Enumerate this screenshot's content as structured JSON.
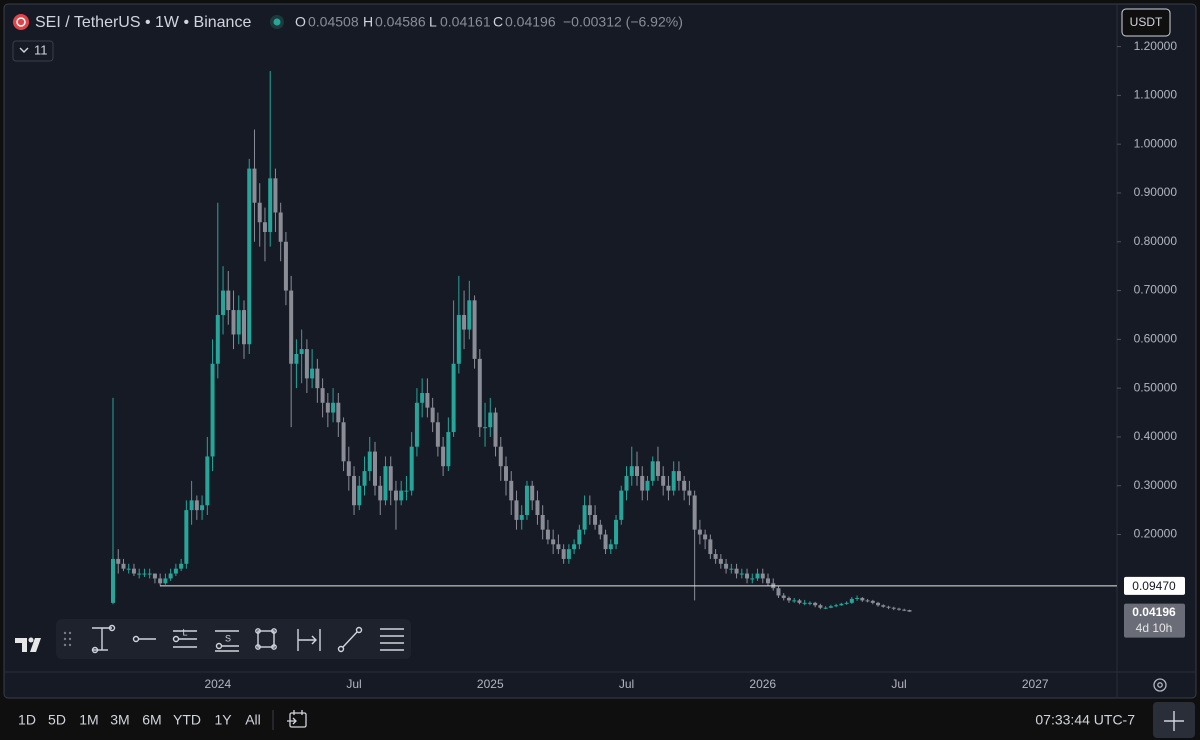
{
  "header": {
    "symbol": "SEI / TetherUS • 1W • Binance",
    "letters": [
      "O",
      "H",
      "L",
      "C"
    ],
    "change": "−0.00312 (−6.92%)",
    "indicator_count": "11",
    "currency": "USDT"
  },
  "drawing_tools": [
    "L",
    "S"
  ],
  "ranges": [
    "1D",
    "5D",
    "1M",
    "3M",
    "6M",
    "YTD",
    "1Y",
    "All"
  ],
  "clock": "07:33:44 UTC-7",
  "chart_data": {
    "type": "candlestick",
    "up_color": "#26a69a",
    "down_color": "#8a8d96",
    "ylim": [
      -0.133,
      1.275
    ],
    "yticks": [
      {
        "value": 0.2,
        "label": "0.20000"
      },
      {
        "value": 0.3,
        "label": "0.30000"
      },
      {
        "value": 0.4,
        "label": "0.40000"
      },
      {
        "value": 0.5,
        "label": "0.50000"
      },
      {
        "value": 0.6,
        "label": "0.60000"
      },
      {
        "value": 0.7,
        "label": "0.70000"
      },
      {
        "value": 0.8,
        "label": "0.80000"
      },
      {
        "value": 0.9,
        "label": "0.90000"
      },
      {
        "value": 1.0,
        "label": "1.00000"
      },
      {
        "value": 1.1,
        "label": "1.10000"
      },
      {
        "value": 1.2,
        "label": "1.20000"
      }
    ],
    "grid": false,
    "horizontal_line": {
      "value": 0.0947,
      "label": "0.09470"
    },
    "last_price": {
      "value": 0.04196,
      "label": "0.04196"
    },
    "countdown": "4d 10h",
    "categories": [
      null,
      null,
      null,
      null,
      null,
      null,
      null,
      null,
      null,
      null,
      null,
      null,
      null,
      null,
      null,
      null,
      null,
      null,
      null,
      null,
      "2024",
      null,
      null,
      null,
      null,
      null,
      null,
      null,
      null,
      null,
      null,
      null,
      null,
      null,
      null,
      null,
      null,
      null,
      null,
      null,
      null,
      null,
      null,
      null,
      null,
      null,
      "Jul",
      null,
      null,
      null,
      null,
      null,
      null,
      null,
      null,
      null,
      null,
      null,
      null,
      null,
      null,
      null,
      null,
      null,
      null,
      null,
      null,
      null,
      null,
      null,
      null,
      null,
      "2025",
      null,
      null,
      null,
      null,
      null,
      null,
      null,
      null,
      null,
      null,
      null,
      null,
      null,
      null,
      null,
      null,
      null,
      null,
      null,
      null,
      null,
      null,
      null,
      null,
      null,
      "Jul",
      null,
      null,
      null,
      null,
      null,
      null,
      null,
      null,
      null,
      null,
      null,
      null,
      null,
      null,
      null,
      null,
      null,
      null,
      null,
      null,
      null,
      null,
      null,
      null,
      null,
      "2026",
      null,
      null,
      null,
      null,
      null,
      null,
      null,
      null,
      null,
      null,
      null,
      null,
      null,
      null,
      null,
      null,
      null,
      null,
      null,
      null,
      null,
      null,
      null,
      null,
      null,
      "Jul",
      null,
      null,
      null,
      null,
      null,
      null,
      null,
      null,
      null,
      null,
      null,
      null,
      null,
      null,
      null,
      null,
      null,
      null,
      null,
      null,
      null,
      null,
      null,
      null,
      null,
      "2027"
    ],
    "open": [
      0.06,
      0.15,
      0.14,
      0.13,
      0.13,
      0.12,
      0.12,
      0.12,
      0.12,
      0.11,
      0.1,
      0.11,
      0.12,
      0.13,
      0.14,
      0.25,
      0.27,
      0.25,
      0.26,
      0.36,
      0.55,
      0.65,
      0.7,
      0.66,
      0.61,
      0.66,
      0.59,
      0.95,
      0.88,
      0.84,
      0.82,
      0.93,
      0.86,
      0.8,
      0.7,
      0.55,
      0.57,
      0.58,
      0.52,
      0.54,
      0.5,
      0.47,
      0.45,
      0.47,
      0.43,
      0.35,
      0.32,
      0.26,
      0.3,
      0.33,
      0.37,
      0.3,
      0.27,
      0.34,
      0.29,
      0.27,
      0.29,
      0.29,
      0.38,
      0.47,
      0.49,
      0.46,
      0.43,
      0.38,
      0.34,
      0.41,
      0.55,
      0.65,
      0.62,
      0.68,
      0.56,
      0.42,
      0.42,
      0.45,
      0.38,
      0.34,
      0.31,
      0.27,
      0.23,
      0.24,
      0.3,
      0.27,
      0.24,
      0.21,
      0.19,
      0.18,
      0.17,
      0.15,
      0.17,
      0.18,
      0.21,
      0.26,
      0.24,
      0.22,
      0.2,
      0.17,
      0.18,
      0.23,
      0.29,
      0.32,
      0.34,
      0.32,
      0.29,
      0.31,
      0.35,
      0.32,
      0.3,
      0.29,
      0.33,
      0.31,
      0.29,
      0.28,
      0.21,
      0.2,
      0.19,
      0.16,
      0.15,
      0.14,
      0.13,
      0.13,
      0.12,
      0.12,
      0.11,
      0.11,
      0.12,
      0.11,
      0.1,
      0.09,
      0.075,
      0.07,
      0.065,
      0.065,
      0.06,
      0.06,
      0.06,
      0.055,
      0.05,
      0.05,
      0.053,
      0.055,
      0.058,
      0.06,
      0.068,
      0.07,
      0.065,
      0.064,
      0.06,
      0.055,
      0.052,
      0.05,
      0.048,
      0.046,
      0.04508,
      null,
      null,
      null,
      null,
      null,
      null,
      null,
      null,
      null,
      null,
      null,
      null,
      null,
      null,
      null,
      null,
      null,
      null,
      null,
      null,
      null,
      null,
      null,
      null
    ],
    "high": [
      0.48,
      0.17,
      0.15,
      0.14,
      0.14,
      0.13,
      0.13,
      0.13,
      0.12,
      0.12,
      0.12,
      0.13,
      0.14,
      0.15,
      0.27,
      0.31,
      0.28,
      0.28,
      0.4,
      0.6,
      0.88,
      0.75,
      0.74,
      0.7,
      0.69,
      0.68,
      0.97,
      1.03,
      0.92,
      0.87,
      1.15,
      0.95,
      0.88,
      0.82,
      0.73,
      0.6,
      0.62,
      0.6,
      0.58,
      0.56,
      0.52,
      0.49,
      0.5,
      0.49,
      0.44,
      0.38,
      0.34,
      0.32,
      0.36,
      0.4,
      0.39,
      0.32,
      0.36,
      0.36,
      0.31,
      0.31,
      0.32,
      0.41,
      0.5,
      0.52,
      0.52,
      0.48,
      0.45,
      0.4,
      0.44,
      0.68,
      0.73,
      0.7,
      0.72,
      0.69,
      0.58,
      0.47,
      0.48,
      0.46,
      0.4,
      0.36,
      0.33,
      0.29,
      0.26,
      0.31,
      0.31,
      0.29,
      0.26,
      0.23,
      0.21,
      0.2,
      0.18,
      0.18,
      0.19,
      0.22,
      0.28,
      0.28,
      0.26,
      0.23,
      0.21,
      0.19,
      0.24,
      0.3,
      0.34,
      0.38,
      0.37,
      0.34,
      0.32,
      0.36,
      0.38,
      0.34,
      0.32,
      0.35,
      0.35,
      0.32,
      0.31,
      0.29,
      0.23,
      0.21,
      0.2,
      0.17,
      0.16,
      0.15,
      0.14,
      0.14,
      0.13,
      0.13,
      0.12,
      0.13,
      0.13,
      0.12,
      0.11,
      0.095,
      0.08,
      0.073,
      0.07,
      0.068,
      0.066,
      0.063,
      0.062,
      0.058,
      0.053,
      0.056,
      0.058,
      0.06,
      0.063,
      0.072,
      0.075,
      0.072,
      0.068,
      0.066,
      0.062,
      0.057,
      0.054,
      0.052,
      0.05,
      0.048,
      0.04586,
      null,
      null,
      null,
      null,
      null,
      null,
      null,
      null,
      null,
      null,
      null,
      null,
      null,
      null,
      null,
      null,
      null,
      null,
      null,
      null,
      null,
      null,
      null,
      null
    ],
    "low": [
      0.057,
      0.12,
      0.125,
      0.12,
      0.115,
      0.11,
      0.113,
      0.11,
      0.1,
      0.095,
      0.097,
      0.105,
      0.115,
      0.125,
      0.13,
      0.22,
      0.23,
      0.23,
      0.24,
      0.33,
      0.52,
      0.61,
      0.63,
      0.58,
      0.59,
      0.56,
      0.57,
      0.8,
      0.79,
      0.76,
      0.79,
      0.82,
      0.76,
      0.67,
      0.42,
      0.5,
      0.51,
      0.49,
      0.5,
      0.47,
      0.44,
      0.42,
      0.43,
      0.4,
      0.33,
      0.29,
      0.24,
      0.25,
      0.28,
      0.31,
      0.28,
      0.24,
      0.26,
      0.26,
      0.21,
      0.26,
      0.27,
      0.28,
      0.36,
      0.44,
      0.44,
      0.41,
      0.36,
      0.32,
      0.33,
      0.4,
      0.53,
      0.58,
      0.6,
      0.54,
      0.4,
      0.38,
      0.4,
      0.36,
      0.31,
      0.28,
      0.24,
      0.21,
      0.21,
      0.23,
      0.25,
      0.22,
      0.19,
      0.18,
      0.16,
      0.16,
      0.14,
      0.14,
      0.16,
      0.17,
      0.2,
      0.22,
      0.21,
      0.19,
      0.16,
      0.16,
      0.17,
      0.22,
      0.27,
      0.3,
      0.3,
      0.27,
      0.27,
      0.3,
      0.31,
      0.28,
      0.27,
      0.28,
      0.29,
      0.27,
      0.26,
      0.065,
      0.18,
      0.17,
      0.15,
      0.14,
      0.13,
      0.12,
      0.12,
      0.11,
      0.11,
      0.1,
      0.1,
      0.105,
      0.1,
      0.095,
      0.085,
      0.07,
      0.065,
      0.06,
      0.06,
      0.057,
      0.055,
      0.055,
      0.051,
      0.047,
      0.047,
      0.049,
      0.051,
      0.054,
      0.056,
      0.058,
      0.064,
      0.062,
      0.061,
      0.057,
      0.052,
      0.05,
      0.047,
      0.045,
      0.044,
      0.043,
      0.04161,
      null,
      null,
      null,
      null,
      null,
      null,
      null,
      null,
      null,
      null,
      null,
      null,
      null,
      null,
      null,
      null,
      null,
      null,
      null,
      null,
      null,
      null,
      null,
      null
    ],
    "close": [
      0.15,
      0.14,
      0.13,
      0.13,
      0.12,
      0.12,
      0.12,
      0.12,
      0.11,
      0.1,
      0.11,
      0.12,
      0.13,
      0.14,
      0.25,
      0.27,
      0.25,
      0.26,
      0.36,
      0.55,
      0.65,
      0.7,
      0.66,
      0.61,
      0.66,
      0.59,
      0.95,
      0.88,
      0.84,
      0.82,
      0.93,
      0.86,
      0.8,
      0.7,
      0.55,
      0.57,
      0.58,
      0.52,
      0.54,
      0.5,
      0.47,
      0.45,
      0.47,
      0.43,
      0.35,
      0.32,
      0.26,
      0.3,
      0.33,
      0.37,
      0.3,
      0.27,
      0.34,
      0.29,
      0.27,
      0.29,
      0.29,
      0.38,
      0.47,
      0.49,
      0.46,
      0.43,
      0.38,
      0.34,
      0.41,
      0.55,
      0.65,
      0.62,
      0.68,
      0.56,
      0.42,
      0.42,
      0.45,
      0.38,
      0.34,
      0.31,
      0.27,
      0.23,
      0.24,
      0.3,
      0.27,
      0.24,
      0.21,
      0.19,
      0.18,
      0.17,
      0.15,
      0.17,
      0.18,
      0.21,
      0.26,
      0.24,
      0.22,
      0.2,
      0.17,
      0.18,
      0.23,
      0.29,
      0.32,
      0.34,
      0.32,
      0.29,
      0.31,
      0.35,
      0.32,
      0.3,
      0.29,
      0.33,
      0.31,
      0.29,
      0.28,
      0.21,
      0.2,
      0.19,
      0.16,
      0.15,
      0.14,
      0.13,
      0.13,
      0.12,
      0.12,
      0.11,
      0.11,
      0.12,
      0.11,
      0.1,
      0.09,
      0.075,
      0.07,
      0.065,
      0.065,
      0.06,
      0.06,
      0.06,
      0.055,
      0.05,
      0.05,
      0.053,
      0.055,
      0.058,
      0.06,
      0.068,
      0.07,
      0.065,
      0.064,
      0.06,
      0.055,
      0.052,
      0.05,
      0.048,
      0.046,
      0.04508,
      0.04196,
      null,
      null,
      null,
      null,
      null,
      null,
      null,
      null,
      null,
      null,
      null,
      null,
      null,
      null,
      null,
      null,
      null,
      null,
      null,
      null,
      null,
      null,
      null,
      null
    ]
  }
}
